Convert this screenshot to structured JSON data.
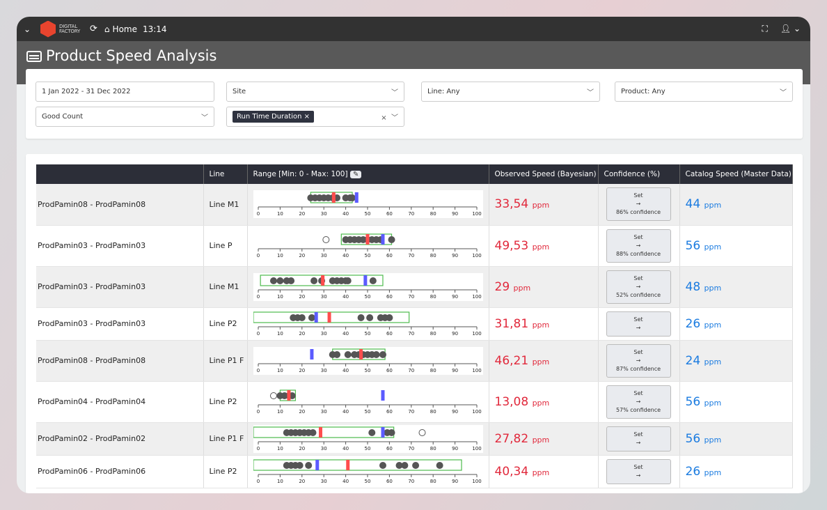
{
  "topbar": {
    "logo_line1": "DIGITAL",
    "logo_line2": "FACTORY",
    "home": "Home",
    "time": "13:14"
  },
  "page": {
    "title": "Product Speed Analysis"
  },
  "filters": {
    "date": "1 Jan 2022 - 31 Dec 2022",
    "site": "Site",
    "line": "Line: Any",
    "product": "Product: Any",
    "metric": "Good Count",
    "chip": "Run Time Duration"
  },
  "table": {
    "headers": [
      "",
      "Line",
      "Range [Min: 0 - Max: 100]",
      "Observed Speed (Bayesian)",
      "Confidence (%)",
      "Catalog Speed (Master Data)"
    ],
    "unit": "ppm",
    "set_label": "Set",
    "arrow": "→",
    "axis_ticks": [
      0,
      10,
      20,
      30,
      40,
      50,
      60,
      70,
      80,
      90,
      100
    ],
    "colors": {
      "observed": "#ff4d4d",
      "catalog": "#5b5bff",
      "box": "#4cbb4c",
      "point": "#555555"
    },
    "rows": [
      {
        "name": "ProdPamin08 - ProdPamin08",
        "line": "Line M1",
        "observed": "33,54",
        "confidence": "86% confidence",
        "catalog": "44",
        "plot": {
          "box": [
            24,
            43
          ],
          "observed": 34.5,
          "catalog": 45,
          "points": [
            24,
            26,
            28,
            30,
            32,
            34,
            36,
            40,
            42,
            43
          ],
          "outliers": []
        }
      },
      {
        "name": "ProdPamin03 - ProdPamin03",
        "line": "Line P",
        "observed": "49,53",
        "confidence": "88% confidence",
        "catalog": "56",
        "plot": {
          "box": [
            38,
            61
          ],
          "observed": 50,
          "catalog": 57,
          "points": [
            40,
            42,
            44,
            46,
            48,
            50,
            52,
            54,
            56,
            61
          ],
          "outliers": [
            31
          ]
        }
      },
      {
        "name": "ProdPamin03 - ProdPamin03",
        "line": "Line M1",
        "observed": "29",
        "confidence": "52% confidence",
        "catalog": "48",
        "plot": {
          "box": [
            1,
            57
          ],
          "observed": 29.5,
          "catalog": 49,
          "points": [
            7,
            10,
            13,
            15,
            25.5,
            29,
            34,
            36,
            38,
            40,
            41,
            52.5
          ],
          "outliers": []
        }
      },
      {
        "name": "ProdPamin03 - ProdPamin03",
        "line": "Line P2",
        "observed": "31,81",
        "confidence": "",
        "catalog": "26",
        "plot": {
          "box": [
            -3,
            69
          ],
          "observed": 32.5,
          "catalog": 26.5,
          "points": [
            16,
            18,
            20,
            24.5,
            47,
            51,
            56,
            58,
            60
          ],
          "outliers": []
        }
      },
      {
        "name": "ProdPamin08 - ProdPamin08",
        "line": "Line P1 F",
        "observed": "46,21",
        "confidence": "87% confidence",
        "catalog": "24",
        "plot": {
          "box": [
            34,
            58
          ],
          "observed": 47,
          "catalog": 24.5,
          "points": [
            34,
            36,
            41,
            44,
            46,
            48,
            50,
            52,
            54,
            57
          ],
          "outliers": []
        }
      },
      {
        "name": "ProdPamin04 - ProdPamin04",
        "line": "Line P2",
        "observed": "13,08",
        "confidence": "57% confidence",
        "catalog": "56",
        "plot": {
          "box": [
            10,
            17
          ],
          "observed": 14,
          "catalog": 57,
          "points": [
            10,
            12,
            14,
            15.5
          ],
          "outliers": [
            7
          ]
        }
      },
      {
        "name": "ProdPamin02 - ProdPamin02",
        "line": "Line P1 F",
        "observed": "27,82",
        "confidence": "",
        "catalog": "56",
        "plot": {
          "box": [
            -3,
            62
          ],
          "observed": 28.5,
          "catalog": 57,
          "points": [
            13,
            15,
            17,
            19,
            21,
            23,
            25,
            52,
            59,
            61
          ],
          "outliers": [
            75
          ]
        }
      },
      {
        "name": "ProdPamin06 - ProdPamin06",
        "line": "Line P2",
        "observed": "40,34",
        "confidence": "",
        "catalog": "26",
        "plot": {
          "box": [
            -3,
            93
          ],
          "observed": 41,
          "catalog": 27,
          "points": [
            13,
            15,
            17,
            19,
            23,
            57,
            64.5,
            67,
            72,
            83
          ],
          "outliers": []
        }
      }
    ]
  }
}
